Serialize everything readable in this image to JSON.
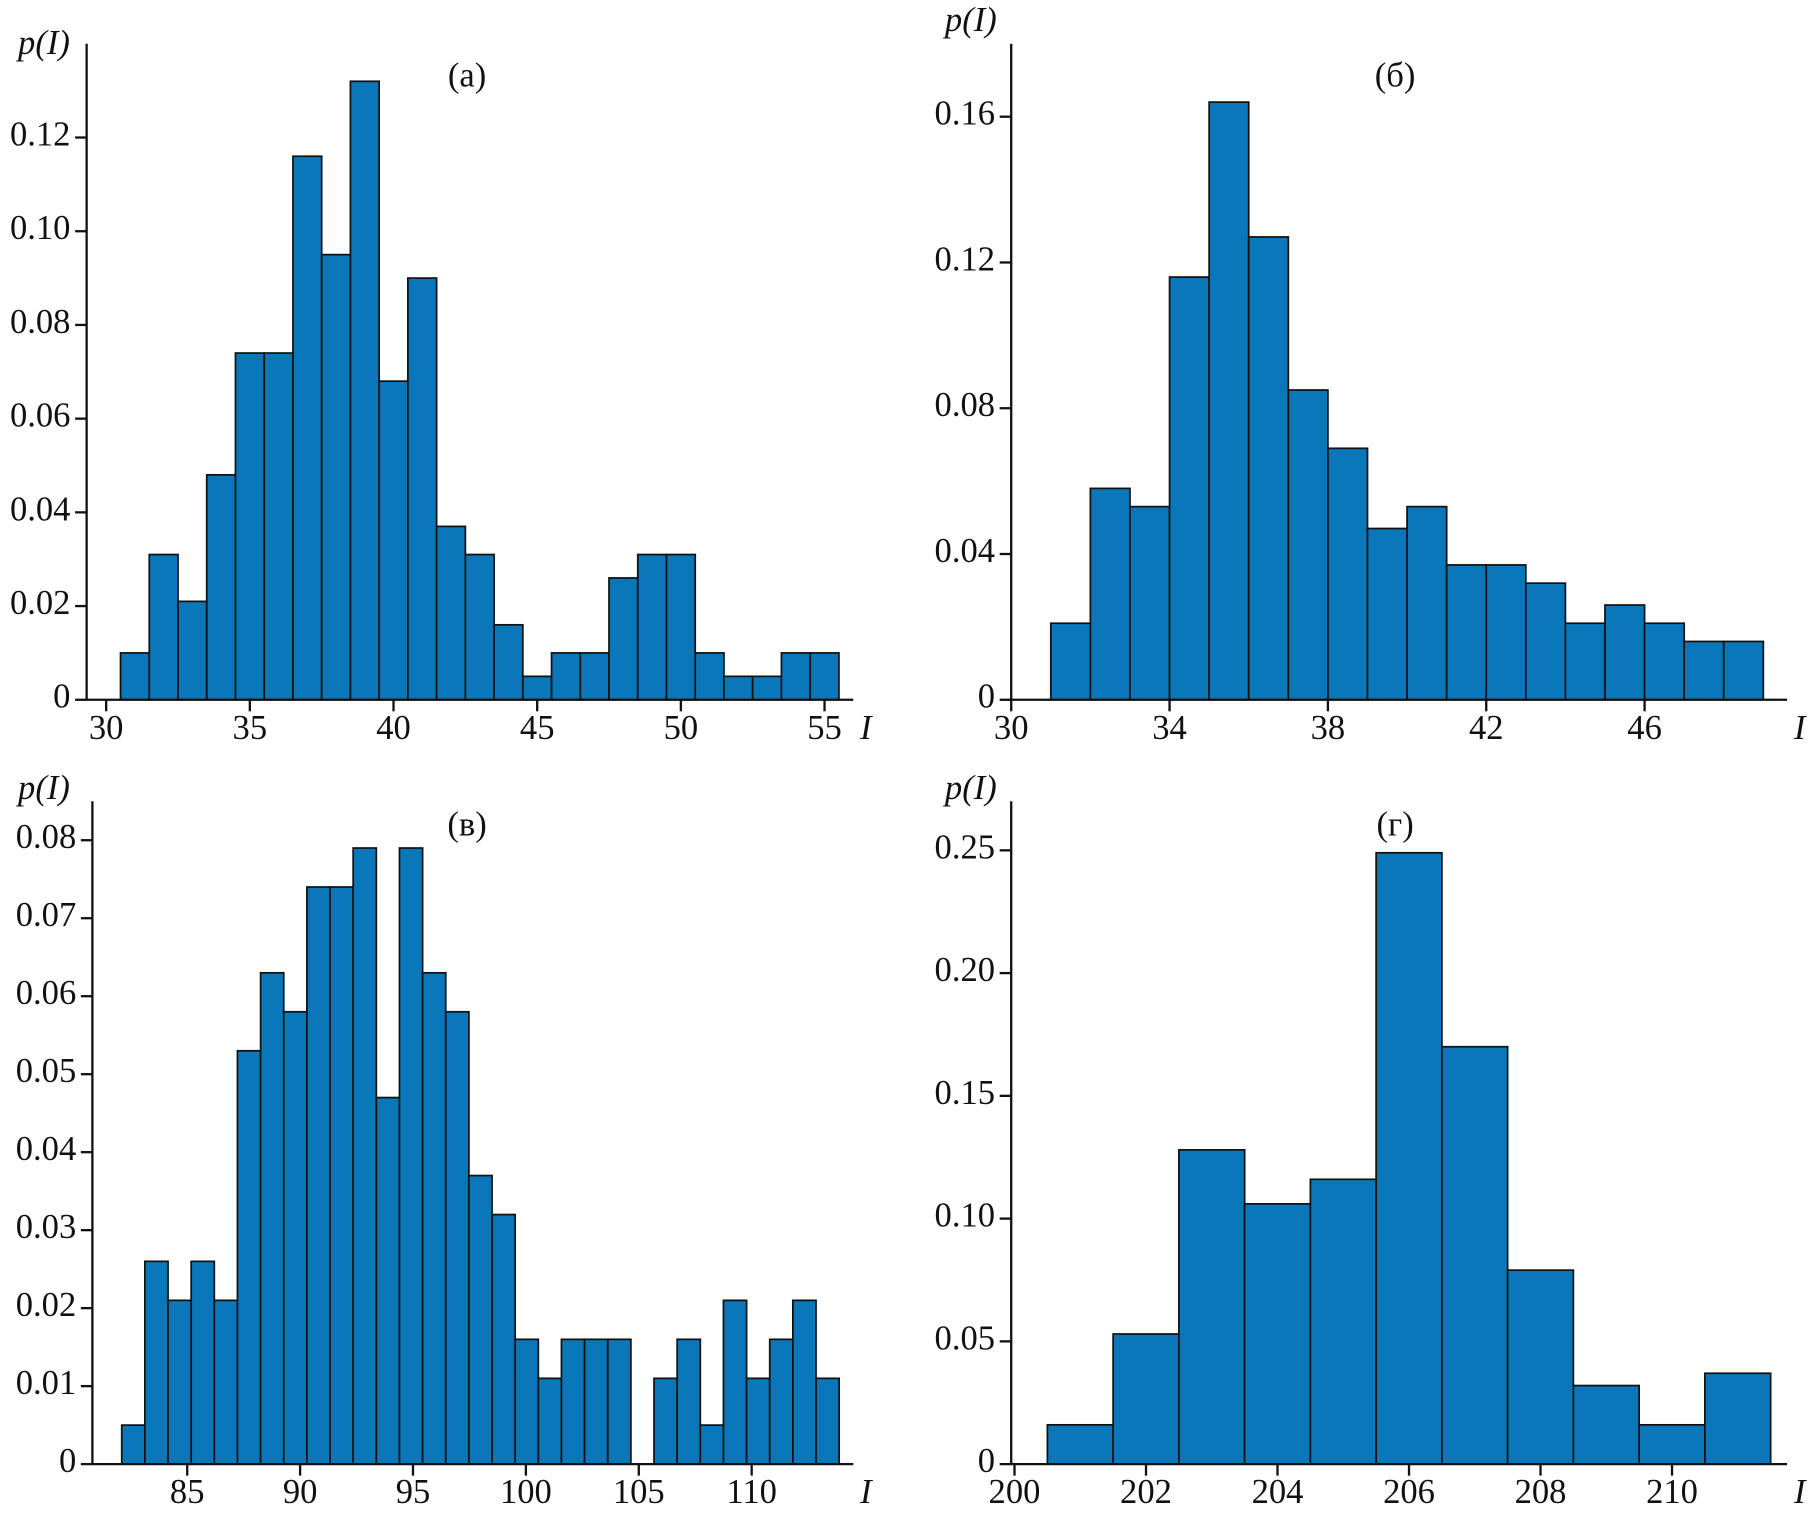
{
  "chart_data": [
    {
      "type": "histogram",
      "title": "(а)",
      "x_label": "I",
      "y_label": "p(I)",
      "color": "#0a77bb",
      "bins": [
        30.5,
        31.5,
        32.5,
        33.5,
        34.5,
        35.5,
        36.5,
        37.5,
        38.5,
        39.5,
        40.5,
        41.5,
        42.5,
        43.5,
        44.5,
        45.5,
        46.5,
        47.5,
        48.5,
        49.5,
        50.5,
        51.5,
        52.5,
        53.5,
        54.5,
        55.5
      ],
      "counts": [
        0.01,
        0.031,
        0.021,
        0.048,
        0.074,
        0.074,
        0.116,
        0.095,
        0.132,
        0.068,
        0.09,
        0.037,
        0.031,
        0.016,
        0.005,
        0.01,
        0.01,
        0.026,
        0.031,
        0.031,
        0.01,
        0.005,
        0.005,
        0.01,
        0.01
      ],
      "xlim": [
        29.32,
        56
      ],
      "ylim": [
        0,
        0.14
      ],
      "xticks": [
        30,
        35,
        40,
        45,
        50,
        55
      ],
      "yticks": [
        0,
        0.02,
        0.04,
        0.06,
        0.08,
        {
          "value": 0.1,
          "label": "0.10"
        },
        0.12
      ]
    },
    {
      "type": "histogram",
      "title": "(б)",
      "x_label": "I",
      "y_label": "p(I)",
      "color": "#0a77bb",
      "bins": [
        31,
        32,
        33,
        34,
        35,
        36,
        37,
        38,
        39,
        40,
        41,
        42,
        43,
        44,
        45,
        46,
        47,
        48,
        49
      ],
      "counts": [
        0.021,
        0.058,
        0.053,
        0.116,
        0.164,
        0.127,
        0.085,
        0.069,
        0.047,
        0.053,
        0.037,
        0.037,
        0.032,
        0.021,
        0.026,
        0.021,
        0.016,
        0.016
      ],
      "xlim": [
        30,
        49.6
      ],
      "ylim": [
        0,
        0.18
      ],
      "xticks": [
        30,
        34,
        38,
        42,
        46
      ],
      "yticks": [
        0,
        0.04,
        0.08,
        0.12,
        0.16
      ]
    },
    {
      "type": "histogram",
      "title": "(в)",
      "x_label": "I",
      "y_label": "p(I)",
      "color": "#0a77bb",
      "bins": [
        82.1,
        83.125,
        84.15,
        85.175,
        86.2,
        87.225,
        88.25,
        89.275,
        90.3,
        91.325,
        92.35,
        93.375,
        94.4,
        95.425,
        96.45,
        97.475,
        98.5,
        99.525,
        100.55,
        101.575,
        102.6,
        103.625,
        104.65,
        105.675,
        106.7,
        107.725,
        108.75,
        109.775,
        110.8,
        111.825,
        112.85,
        113.875
      ],
      "counts": [
        0.005,
        0.026,
        0.021,
        0.026,
        0.021,
        0.053,
        0.063,
        0.058,
        0.074,
        0.074,
        0.079,
        0.047,
        0.079,
        0.063,
        0.058,
        0.037,
        0.032,
        0.016,
        0.011,
        0.016,
        0.016,
        0.016,
        0,
        0.011,
        0.016,
        0.005,
        0.021,
        0.011,
        0.016,
        0.021,
        0.011
      ],
      "xlim": [
        80.8,
        114.5
      ],
      "ylim": [
        0,
        0.085
      ],
      "xticks": [
        85,
        90,
        95,
        100,
        105,
        110
      ],
      "yticks": [
        0,
        0.01,
        0.02,
        0.03,
        0.04,
        0.05,
        0.06,
        0.07,
        0.08
      ]
    },
    {
      "type": "histogram",
      "title": "(г)",
      "x_label": "I",
      "y_label": "p(I)",
      "color": "#0a77bb",
      "bins": [
        200.5,
        201.5,
        202.5,
        203.5,
        204.5,
        205.5,
        206.5,
        207.5,
        208.5,
        209.5,
        210.5,
        211.5
      ],
      "counts": [
        0.016,
        0.053,
        0.128,
        0.106,
        0.116,
        0.249,
        0.17,
        0.079,
        0.032,
        0.016,
        0.037
      ],
      "xlim": [
        199.95,
        211.75
      ],
      "ylim": [
        0,
        0.27
      ],
      "xticks": [
        200,
        202,
        204,
        206,
        208,
        210
      ],
      "yticks": [
        0,
        0.05,
        {
          "value": 0.1,
          "label": "0.10"
        },
        0.15,
        {
          "value": 0.2,
          "label": "0.20"
        },
        0.25
      ]
    }
  ]
}
